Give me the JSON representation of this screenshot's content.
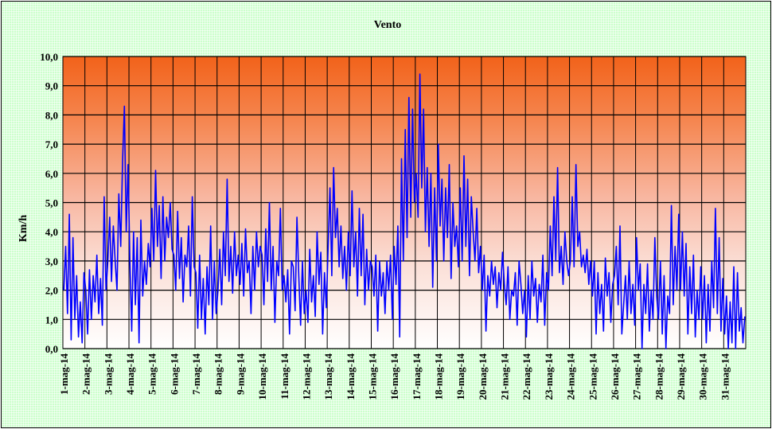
{
  "chart_data": {
    "type": "line",
    "title": "Vento",
    "xlabel": "",
    "ylabel": "Km/h",
    "ylim": [
      0,
      10
    ],
    "yticks": [
      "0,0",
      "1,0",
      "2,0",
      "3,0",
      "4,0",
      "5,0",
      "6,0",
      "7,0",
      "8,0",
      "9,0",
      "10,0"
    ],
    "categories": [
      "1-mag-14",
      "2-mag-14",
      "3-mag-14",
      "4-mag-14",
      "5-mag-14",
      "6-mag-14",
      "7-mag-14",
      "8-mag-14",
      "9-mag-14",
      "10-mag-14",
      "11-mag-14",
      "12-mag-14",
      "13-mag-14",
      "14-mag-14",
      "15-mag-14",
      "16-mag-14",
      "17-mag-14",
      "18-mag-14",
      "19-mag-14",
      "20-mag-14",
      "21-mag-14",
      "22-mag-14",
      "23-mag-14",
      "24-mag-14",
      "25-mag-14",
      "26-mag-14",
      "27-mag-14",
      "28-mag-14",
      "29-mag-14",
      "30-mag-14",
      "31-mag-14"
    ],
    "grid": true,
    "series": [
      {
        "color": "#0000ff",
        "daily_values": [
          [
            2.0,
            3.5,
            1.2,
            4.6,
            0.3,
            3.8,
            1.0,
            2.5,
            0.4,
            1.6,
            0.2,
            2.6
          ],
          [
            2.0,
            0.5,
            2.7,
            1.0,
            2.5,
            1.6,
            3.2,
            1.2,
            2.4,
            0.8,
            5.2,
            2.0
          ],
          [
            3.0,
            4.5,
            2.3,
            4.2,
            3.0,
            2.0,
            5.3,
            3.5,
            6.4,
            8.3,
            4.0,
            6.3
          ],
          [
            3.0,
            0.6,
            4.0,
            1.5,
            3.8,
            0.2,
            4.4,
            1.8,
            3.0,
            2.2,
            3.6,
            2.8
          ],
          [
            4.8,
            3.0,
            6.1,
            3.5,
            4.9,
            2.4,
            5.2,
            3.0,
            4.5,
            3.8,
            5.0,
            3.4
          ],
          [
            3.2,
            2.0,
            4.7,
            2.4,
            3.8,
            1.6,
            3.2,
            2.8,
            4.2,
            1.8,
            5.2,
            2.8
          ],
          [
            2.6,
            0.7,
            3.2,
            1.0,
            2.4,
            0.5,
            2.8,
            1.5,
            4.2,
            1.0,
            3.0,
            1.2
          ],
          [
            2.0,
            3.4,
            1.5,
            4.0,
            2.5,
            5.8,
            2.3,
            3.5,
            1.9,
            4.0,
            2.5,
            3.2
          ],
          [
            2.2,
            3.6,
            1.8,
            4.1,
            2.6,
            3.0,
            1.2,
            3.5,
            2.0,
            4.0,
            2.8,
            3.5
          ],
          [
            3.2,
            1.5,
            4.1,
            2.3,
            5.0,
            2.0,
            3.5,
            0.9,
            3.0,
            2.5,
            4.8,
            2.0
          ],
          [
            2.5,
            1.6,
            2.7,
            0.5,
            3.0,
            2.8,
            1.3,
            4.5,
            2.5,
            0.8,
            3.0,
            1.2
          ],
          [
            2.0,
            0.9,
            3.4,
            1.6,
            2.5,
            1.1,
            4.0,
            2.2,
            3.3,
            0.5,
            2.6,
            1.4
          ],
          [
            3.5,
            5.5,
            2.5,
            6.2,
            3.8,
            4.8,
            2.8,
            4.2,
            2.4,
            3.5,
            2.0,
            4.0
          ],
          [
            2.5,
            5.4,
            2.8,
            4.0,
            1.8,
            4.8,
            2.5,
            4.6,
            1.5,
            3.4,
            2.0,
            3.0
          ],
          [
            2.8,
            1.8,
            3.2,
            0.6,
            3.0,
            1.8,
            2.6,
            1.2,
            3.0,
            2.0,
            3.2,
            1.0
          ],
          [
            3.5,
            2.2,
            4.2,
            0.4,
            6.5,
            3.0,
            7.5,
            3.8,
            8.6,
            4.5,
            8.2,
            5.0
          ],
          [
            6.0,
            4.5,
            9.4,
            5.5,
            8.2,
            4.0,
            6.2,
            3.5,
            6.0,
            2.1,
            5.5,
            3.0
          ],
          [
            7.0,
            4.2,
            5.8,
            3.0,
            5.5,
            3.8,
            6.3,
            2.4,
            5.0,
            3.5,
            4.2,
            2.8
          ],
          [
            5.5,
            3.0,
            6.6,
            3.5,
            5.8,
            2.5,
            5.2,
            4.0,
            3.0,
            4.8,
            2.6,
            3.5
          ],
          [
            2.0,
            3.2,
            0.6,
            2.5,
            1.8,
            3.0,
            2.2,
            2.8,
            1.4,
            2.6,
            2.0,
            3.3
          ],
          [
            2.2,
            1.5,
            2.8,
            1.0,
            2.0,
            1.8,
            2.6,
            0.8,
            3.0,
            2.2,
            1.2,
            2.0
          ],
          [
            0.4,
            2.5,
            1.0,
            3.0,
            1.8,
            2.4,
            0.9,
            2.2,
            1.6,
            3.2,
            0.8,
            2.6
          ],
          [
            2.0,
            4.2,
            2.5,
            5.2,
            3.0,
            6.2,
            2.6,
            3.5,
            2.2,
            4.0,
            3.0,
            2.5
          ],
          [
            3.0,
            5.2,
            2.8,
            6.3,
            3.5,
            4.0,
            2.8,
            3.2,
            2.6,
            3.4,
            2.2,
            3.0
          ],
          [
            1.8,
            3.0,
            0.5,
            2.6,
            1.2,
            2.2,
            0.6,
            3.1,
            1.8,
            2.6,
            0.9,
            2.2
          ],
          [
            2.5,
            3.5,
            1.5,
            4.2,
            0.5,
            1.5,
            2.5,
            1.0,
            3.0,
            1.2,
            2.2,
            0.8
          ],
          [
            3.8,
            2.0,
            2.9,
            0.0,
            2.2,
            1.2,
            2.9,
            0.6,
            2.0,
            1.0,
            3.8,
            1.8
          ],
          [
            1.0,
            3.0,
            0.5,
            2.5,
            0.0,
            1.8,
            1.2,
            4.9,
            1.5,
            3.5,
            2.0,
            4.6
          ],
          [
            2.0,
            4.0,
            1.8,
            3.6,
            0.5,
            2.8,
            1.2,
            3.2,
            0.4,
            2.0,
            1.0,
            2.8
          ],
          [
            1.0,
            2.5,
            0.2,
            2.2,
            0.6,
            3.0,
            1.4,
            4.8,
            1.2,
            3.8,
            0.6,
            2.4
          ],
          [
            0.5,
            1.8,
            0.0,
            1.6,
            0.2,
            2.8,
            0.0,
            2.6,
            0.6,
            1.4,
            0.2,
            1.1
          ]
        ]
      }
    ]
  }
}
